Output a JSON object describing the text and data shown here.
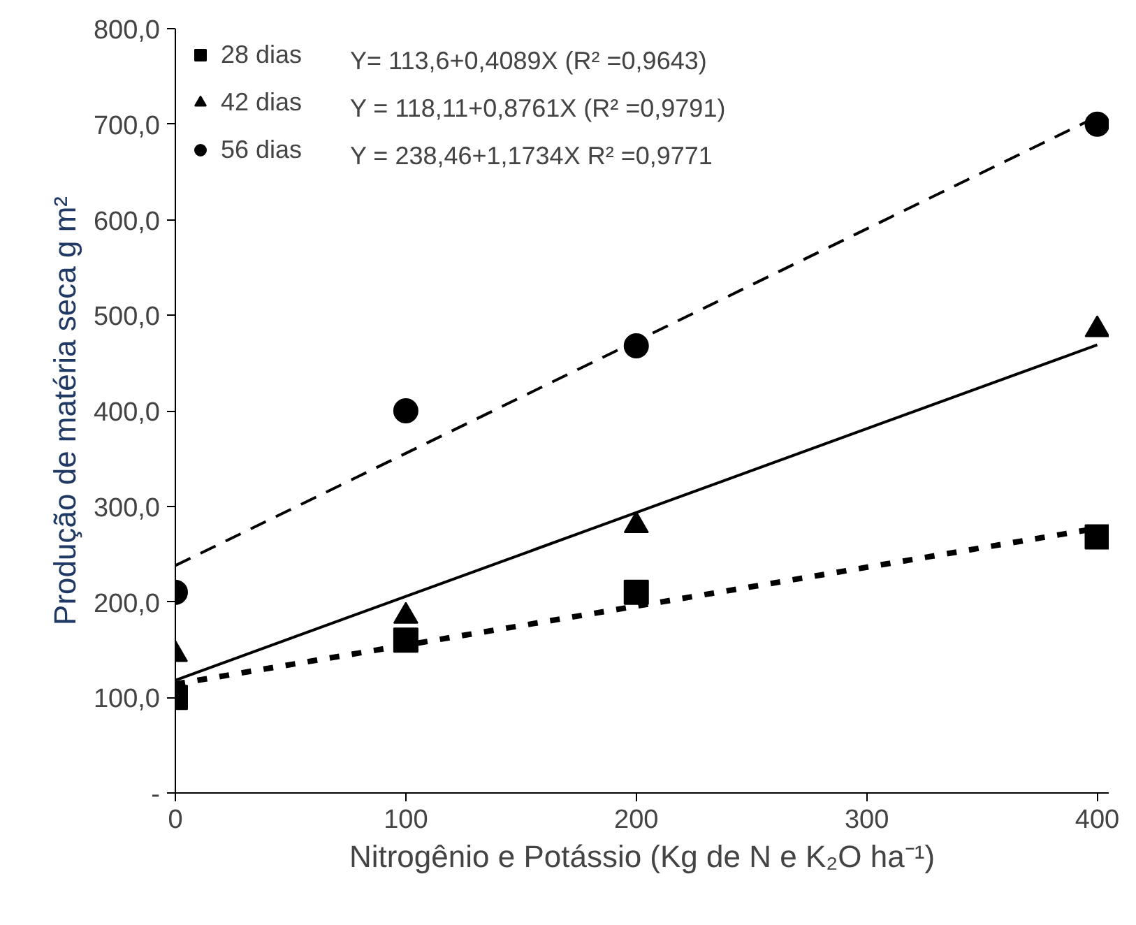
{
  "chart_data": {
    "type": "scatter",
    "xlabel": "Nitrogênio e Potássio (Kg de N e K₂O ha⁻¹)",
    "ylabel": "Produção de matéria seca g m²",
    "xlim": [
      0,
      405
    ],
    "ylim": [
      0,
      800
    ],
    "xticks": [
      0,
      100,
      200,
      300,
      400
    ],
    "yticks": [
      {
        "value": 0,
        "label": "-"
      },
      {
        "value": 100,
        "label": "100,0"
      },
      {
        "value": 200,
        "label": "200,0"
      },
      {
        "value": 300,
        "label": "300,0"
      },
      {
        "value": 400,
        "label": "400,0"
      },
      {
        "value": 500,
        "label": "500,0"
      },
      {
        "value": 600,
        "label": "600,0"
      },
      {
        "value": 700,
        "label": "700,0"
      },
      {
        "value": 800,
        "label": "800,0"
      }
    ],
    "grid": false,
    "legend": "top left",
    "series": [
      {
        "name": "28 dias",
        "color": "#000000",
        "marker": "square",
        "x": [
          0,
          100,
          200,
          400
        ],
        "values": [
          100,
          160,
          210,
          268
        ]
      },
      {
        "name": "42 dias",
        "color": "#000000",
        "marker": "triangle",
        "x": [
          0,
          100,
          200,
          400
        ],
        "values": [
          145,
          185,
          280,
          485
        ]
      },
      {
        "name": "56 dias",
        "color": "#000000",
        "marker": "circle",
        "x": [
          0,
          100,
          200,
          400
        ],
        "values": [
          210,
          400,
          468,
          700
        ]
      },
      {
        "type": "line",
        "color": "#000000",
        "line_style": "dotted",
        "x": [
          0,
          400
        ],
        "values": [
          114,
          277
        ]
      },
      {
        "type": "line",
        "color": "#000000",
        "line_style": "solid",
        "x": [
          0,
          400
        ],
        "values": [
          118,
          469
        ]
      },
      {
        "type": "line",
        "color": "#000000",
        "line_style": "dashed",
        "x": [
          0,
          400
        ],
        "values": [
          238,
          708
        ]
      }
    ],
    "annotations": [
      "Y= 113,6+0,4089X (R² =0,9643)",
      "Y = 118,11+0,8761X (R² =0,9791)",
      "Y = 238,46+1,1734X R² =0,9771"
    ]
  }
}
